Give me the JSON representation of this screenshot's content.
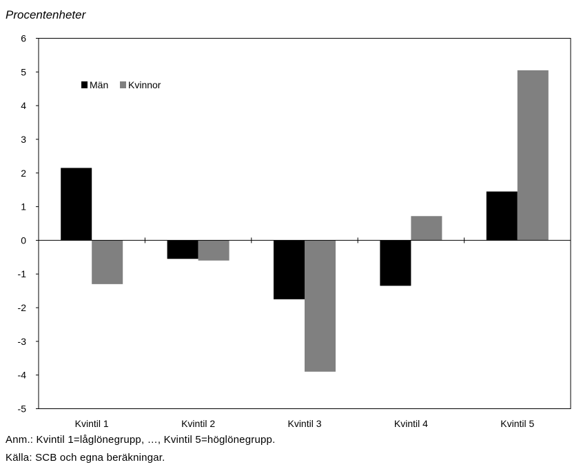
{
  "unit_label": "Procentenheter",
  "notes": {
    "anm": "Anm.: Kvintil 1=låglönegrupp, …, Kvintil 5=höglönegrupp.",
    "source": "Källa: SCB och egna beräkningar."
  },
  "chart_data": {
    "type": "bar",
    "title": "",
    "xlabel": "",
    "ylabel": "Procentenheter",
    "categories": [
      "Kvintil 1",
      "Kvintil 2",
      "Kvintil 3",
      "Kvintil 4",
      "Kvintil 5"
    ],
    "series": [
      {
        "name": "Män",
        "color": "#000000",
        "values": [
          2.15,
          -0.55,
          -1.75,
          -1.35,
          1.45
        ]
      },
      {
        "name": "Kvinnor",
        "color": "#808080",
        "values": [
          -1.3,
          -0.6,
          -3.9,
          0.72,
          5.05
        ]
      }
    ],
    "ylim": [
      -5,
      6
    ],
    "yticks": [
      "6",
      "5",
      "4",
      "3",
      "2",
      "1",
      "0",
      "-1",
      "-2",
      "-3",
      "-4",
      "-5"
    ],
    "grid": false,
    "legend_position": "top-left"
  }
}
